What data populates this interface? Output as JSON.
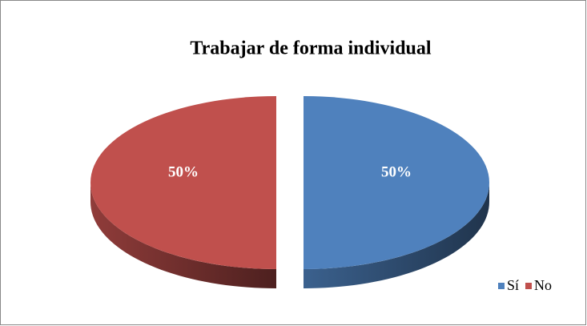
{
  "chart_data": {
    "type": "pie",
    "title": "Trabajar de forma individual",
    "categories": [
      "Sí",
      "No"
    ],
    "values": [
      50,
      50
    ],
    "value_labels": [
      "50%",
      "50%"
    ],
    "colors": [
      "#4f81bd",
      "#c0504d"
    ],
    "legend": "bottom-right"
  }
}
